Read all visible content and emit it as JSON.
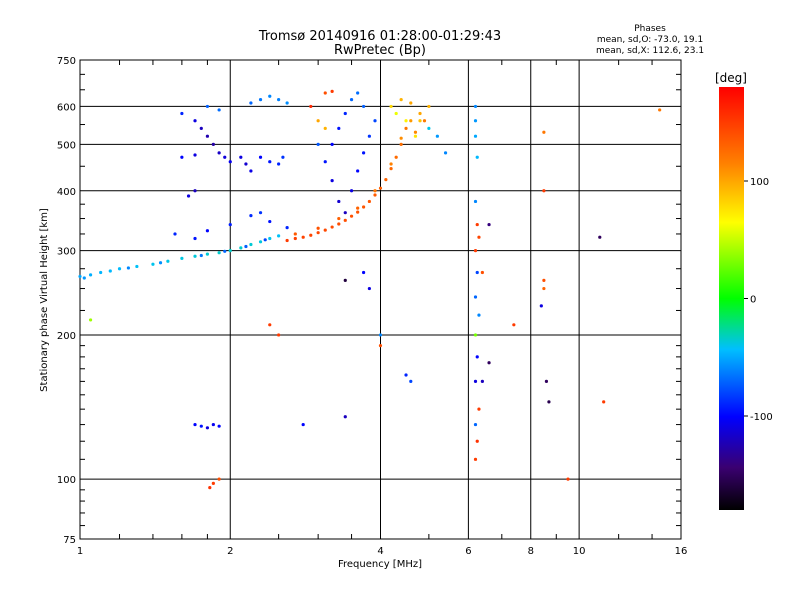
{
  "chart_data": {
    "type": "scatter",
    "title": "Tromsø 20140916 01:28:00-01:29:43",
    "subtitle": "RwPretec (Bp)",
    "xlabel": "Frequency [MHz]",
    "ylabel": "Stationary phase Virtual Height [km]",
    "x_scale": "log",
    "y_scale": "log",
    "xlim": [
      1,
      16
    ],
    "ylim": [
      75,
      750
    ],
    "x_ticks": [
      1,
      2,
      4,
      6,
      8,
      10,
      16
    ],
    "x_tick_labels": [
      "1",
      "2",
      "4",
      "6",
      "8",
      "10",
      "16"
    ],
    "y_ticks": [
      75,
      100,
      200,
      300,
      400,
      500,
      600,
      750
    ],
    "y_tick_labels": [
      "75",
      "100",
      "200",
      "300",
      "400",
      "500",
      "600",
      "750"
    ],
    "grid": true,
    "phase_info": {
      "heading": "Phases",
      "line_o": "mean, sd,O: -73.0, 19.1",
      "line_x": "mean, sd,X: 112.6, 23.1"
    },
    "colorbar": {
      "unit": "[deg]",
      "range": [
        -180,
        180
      ],
      "tick_values": [
        100,
        0,
        -100
      ],
      "tick_labels": [
        "100",
        "0",
        "-100"
      ]
    },
    "series": [
      {
        "points": [
          [
            1.0,
            265,
            -50
          ],
          [
            1.05,
            267,
            -48
          ],
          [
            1.1,
            270,
            -46
          ],
          [
            1.15,
            272,
            -45
          ],
          [
            1.2,
            275,
            -44
          ],
          [
            1.3,
            278,
            -42
          ],
          [
            1.4,
            281,
            -40
          ],
          [
            1.5,
            285,
            -39
          ],
          [
            1.6,
            289,
            -38
          ],
          [
            1.7,
            292,
            -37
          ],
          [
            1.8,
            295,
            -36
          ],
          [
            1.9,
            297,
            -35
          ],
          [
            2.0,
            300,
            -34
          ],
          [
            2.1,
            304,
            -35
          ],
          [
            2.2,
            309,
            -36
          ],
          [
            2.3,
            313,
            -38
          ],
          [
            2.4,
            318,
            -40
          ],
          [
            2.5,
            322,
            -42
          ],
          [
            1.02,
            263,
            -55
          ],
          [
            1.25,
            276,
            -60
          ],
          [
            1.45,
            283,
            -58
          ],
          [
            1.75,
            293,
            -65
          ],
          [
            1.95,
            299,
            -70
          ],
          [
            2.15,
            306,
            -72
          ],
          [
            2.35,
            316,
            -80
          ],
          [
            1.55,
            325,
            -90
          ],
          [
            1.7,
            318,
            -95
          ],
          [
            1.8,
            330,
            -100
          ],
          [
            2.0,
            340,
            -92
          ],
          [
            2.2,
            355,
            -88
          ],
          [
            2.4,
            345,
            -96
          ],
          [
            2.6,
            335,
            -90
          ],
          [
            2.3,
            360,
            -85
          ]
        ]
      },
      {
        "points": [
          [
            2.6,
            315,
            150
          ],
          [
            2.7,
            318,
            148
          ],
          [
            2.8,
            320,
            146
          ],
          [
            2.9,
            323,
            145
          ],
          [
            3.0,
            327,
            144
          ],
          [
            3.1,
            331,
            143
          ],
          [
            3.2,
            336,
            142
          ],
          [
            3.3,
            341,
            141
          ],
          [
            3.4,
            347,
            140
          ],
          [
            3.5,
            354,
            139
          ],
          [
            3.6,
            361,
            138
          ],
          [
            3.7,
            370,
            137
          ],
          [
            3.8,
            380,
            136
          ],
          [
            3.9,
            392,
            134
          ],
          [
            4.0,
            405,
            132
          ],
          [
            4.1,
            422,
            130
          ],
          [
            4.2,
            445,
            128
          ],
          [
            4.3,
            470,
            126
          ],
          [
            4.4,
            500,
            124
          ],
          [
            4.5,
            540,
            122
          ],
          [
            2.7,
            325,
            135
          ],
          [
            3.0,
            334,
            138
          ],
          [
            3.3,
            350,
            132
          ],
          [
            3.6,
            368,
            130
          ],
          [
            3.9,
            400,
            120
          ],
          [
            4.2,
            455,
            115
          ],
          [
            4.4,
            515,
            110
          ],
          [
            4.6,
            560,
            105
          ],
          [
            4.8,
            580,
            100
          ],
          [
            5.0,
            600,
            95
          ],
          [
            4.7,
            530,
            112
          ],
          [
            4.9,
            560,
            118
          ]
        ]
      },
      {
        "points": [
          [
            1.6,
            580,
            -90
          ],
          [
            1.7,
            560,
            -110
          ],
          [
            1.75,
            540,
            -120
          ],
          [
            1.8,
            520,
            -125
          ],
          [
            1.85,
            500,
            -128
          ],
          [
            1.9,
            480,
            -118
          ],
          [
            1.95,
            470,
            -112
          ],
          [
            2.0,
            460,
            -105
          ],
          [
            1.6,
            470,
            -100
          ],
          [
            1.7,
            475,
            -110
          ],
          [
            1.65,
            390,
            -110
          ],
          [
            1.7,
            400,
            -120
          ],
          [
            2.1,
            470,
            -110
          ],
          [
            2.15,
            455,
            -115
          ],
          [
            2.2,
            440,
            -108
          ],
          [
            2.3,
            470,
            -100
          ],
          [
            2.4,
            460,
            -95
          ],
          [
            2.5,
            455,
            -90
          ],
          [
            2.55,
            470,
            -85
          ],
          [
            2.2,
            610,
            -70
          ],
          [
            2.3,
            620,
            -65
          ],
          [
            2.4,
            630,
            -60
          ],
          [
            2.5,
            620,
            -62
          ],
          [
            2.6,
            610,
            -58
          ],
          [
            1.8,
            600,
            -72
          ],
          [
            1.9,
            590,
            -68
          ],
          [
            3.0,
            500,
            -75
          ],
          [
            3.1,
            460,
            -95
          ],
          [
            3.2,
            420,
            -110
          ],
          [
            3.3,
            380,
            -115
          ],
          [
            3.4,
            360,
            -120
          ],
          [
            3.5,
            400,
            -110
          ],
          [
            3.6,
            440,
            -100
          ],
          [
            3.7,
            480,
            -95
          ],
          [
            3.8,
            520,
            -85
          ],
          [
            3.9,
            560,
            -80
          ],
          [
            3.5,
            620,
            -70
          ],
          [
            3.6,
            640,
            -68
          ],
          [
            3.7,
            600,
            -72
          ],
          [
            3.4,
            580,
            -90
          ],
          [
            3.3,
            540,
            -95
          ],
          [
            3.2,
            500,
            -100
          ],
          [
            4.2,
            600,
            80
          ],
          [
            4.4,
            620,
            95
          ],
          [
            4.6,
            610,
            100
          ],
          [
            4.8,
            560,
            88
          ],
          [
            5.0,
            540,
            -40
          ],
          [
            5.2,
            520,
            -55
          ],
          [
            5.4,
            480,
            -60
          ],
          [
            4.3,
            580,
            60
          ],
          [
            4.5,
            560,
            70
          ],
          [
            4.7,
            520,
            75
          ],
          [
            3.1,
            640,
            140
          ],
          [
            3.2,
            645,
            150
          ],
          [
            2.9,
            600,
            160
          ],
          [
            3.0,
            560,
            100
          ],
          [
            3.1,
            540,
            95
          ]
        ]
      },
      {
        "points": [
          [
            6.2,
            600,
            -60
          ],
          [
            6.2,
            560,
            -55
          ],
          [
            6.2,
            520,
            -50
          ],
          [
            6.25,
            470,
            -45
          ],
          [
            6.2,
            380,
            -60
          ],
          [
            6.25,
            340,
            150
          ],
          [
            6.3,
            320,
            145
          ],
          [
            6.2,
            300,
            150
          ],
          [
            6.25,
            270,
            -80
          ],
          [
            6.2,
            240,
            -70
          ],
          [
            6.3,
            220,
            -60
          ],
          [
            6.2,
            200,
            30
          ],
          [
            6.25,
            180,
            -100
          ],
          [
            6.2,
            160,
            -110
          ],
          [
            6.3,
            140,
            150
          ],
          [
            6.2,
            130,
            -70
          ],
          [
            6.25,
            120,
            155
          ],
          [
            6.2,
            110,
            150
          ],
          [
            6.4,
            270,
            140
          ],
          [
            6.6,
            340,
            -140
          ],
          [
            6.6,
            175,
            -150
          ],
          [
            6.4,
            160,
            -120
          ],
          [
            7.4,
            210,
            150
          ]
        ]
      },
      {
        "points": [
          [
            8.5,
            530,
            120
          ],
          [
            8.5,
            400,
            150
          ],
          [
            8.5,
            260,
            140
          ],
          [
            8.5,
            250,
            130
          ],
          [
            8.4,
            230,
            -110
          ],
          [
            8.6,
            160,
            -150
          ],
          [
            8.7,
            145,
            -155
          ],
          [
            9.5,
            100,
            150
          ],
          [
            11.0,
            320,
            -150
          ],
          [
            11.2,
            145,
            150
          ],
          [
            14.5,
            590,
            120
          ],
          [
            3.4,
            260,
            -160
          ],
          [
            3.8,
            250,
            -110
          ],
          [
            3.7,
            270,
            -100
          ],
          [
            4.0,
            200,
            -60
          ],
          [
            4.0,
            190,
            140
          ],
          [
            4.5,
            165,
            -90
          ],
          [
            4.6,
            160,
            -80
          ],
          [
            2.4,
            210,
            150
          ],
          [
            2.5,
            200,
            150
          ],
          [
            1.05,
            215,
            40
          ],
          [
            2.8,
            130,
            -100
          ],
          [
            3.4,
            135,
            -120
          ],
          [
            1.7,
            130,
            -100
          ],
          [
            1.75,
            129,
            -95
          ],
          [
            1.8,
            128,
            -110
          ],
          [
            1.85,
            130,
            -105
          ],
          [
            1.9,
            129,
            -100
          ],
          [
            1.85,
            98,
            150
          ],
          [
            1.9,
            100,
            140
          ],
          [
            1.82,
            96,
            155
          ]
        ]
      }
    ]
  }
}
